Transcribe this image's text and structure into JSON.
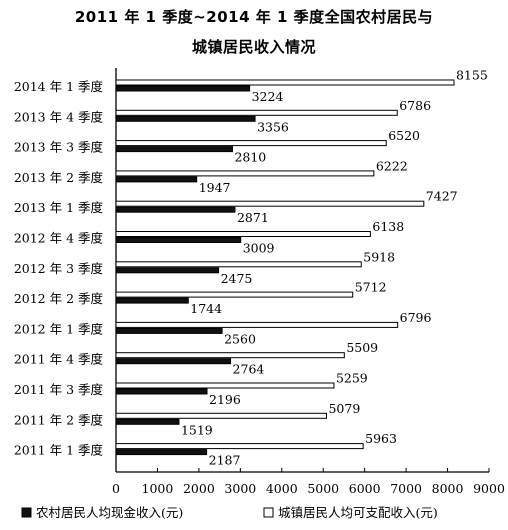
{
  "title_line1": "2011 年 1 季度~2014 年 1 季度全国农村居民与",
  "title_line2": "城镇居民收入情况",
  "chart_data": {
    "type": "bar",
    "orientation": "horizontal",
    "categories": [
      "2014 年 1 季度",
      "2013 年 4 季度",
      "2013 年 3 季度",
      "2013 年 2 季度",
      "2013 年 1 季度",
      "2012 年 4 季度",
      "2012 年 3 季度",
      "2012 年 2 季度",
      "2012 年 1 季度",
      "2011 年 4 季度",
      "2011 年 3 季度",
      "2011 年 2 季度",
      "2011 年 1 季度"
    ],
    "series": [
      {
        "name": "农村居民人均现金收入(元)",
        "color": "#111111",
        "values": [
          3224,
          3356,
          2810,
          1947,
          2871,
          3009,
          2475,
          1744,
          2560,
          2764,
          2196,
          1519,
          2187
        ]
      },
      {
        "name": "城镇居民人均可支配收入(元)",
        "color": "#ffffff",
        "values": [
          8155,
          6786,
          6520,
          6222,
          7427,
          6138,
          5918,
          5712,
          6796,
          5509,
          5259,
          5079,
          5963
        ]
      }
    ],
    "xlim": [
      0,
      9000
    ],
    "xticks": [
      0,
      1000,
      2000,
      3000,
      4000,
      5000,
      6000,
      7000,
      8000,
      9000
    ],
    "legend_position": "bottom"
  }
}
